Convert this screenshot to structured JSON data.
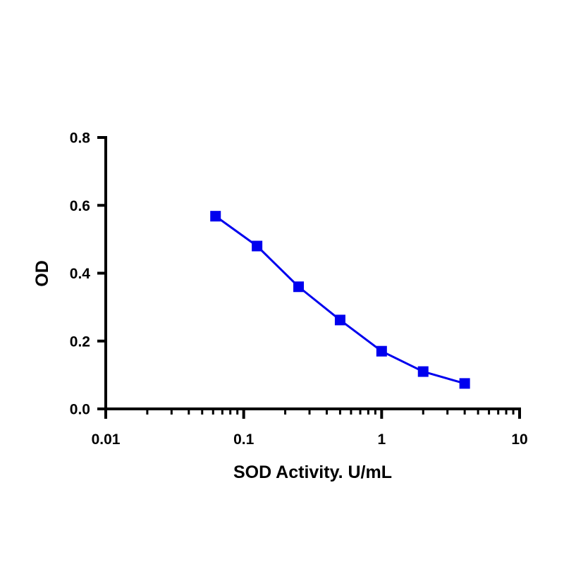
{
  "chart_data": {
    "type": "line",
    "title": "",
    "xlabel": "SOD Activity. U/mL",
    "ylabel": "OD",
    "xscale": "log",
    "xlim": [
      0.01,
      10
    ],
    "ylim": [
      0,
      0.8
    ],
    "xticks": [
      "0.01",
      "0.1",
      "1",
      "10"
    ],
    "yticks": [
      "0.0",
      "0.2",
      "0.4",
      "0.6",
      "0.8"
    ],
    "grid": false,
    "legend": "none",
    "series": [
      {
        "color": "#0000ee",
        "marker": "square",
        "x": [
          0.0625,
          0.125,
          0.25,
          0.5,
          1,
          2,
          4
        ],
        "y": [
          0.568,
          0.48,
          0.36,
          0.262,
          0.17,
          0.11,
          0.075
        ]
      }
    ]
  }
}
